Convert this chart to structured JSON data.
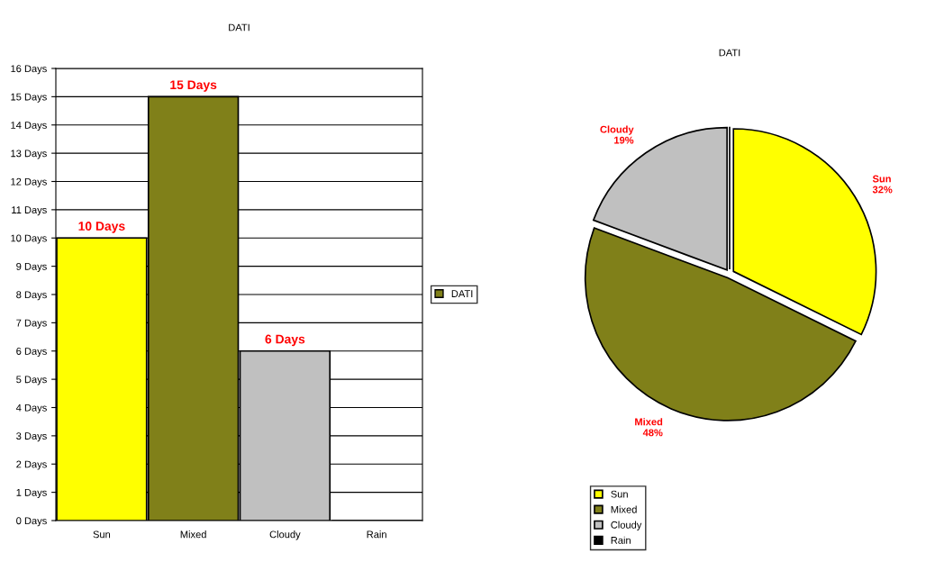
{
  "chart_data": [
    {
      "type": "bar",
      "title": "DATI",
      "categories": [
        "Sun",
        "Mixed",
        "Cloudy",
        "Rain"
      ],
      "series": [
        {
          "name": "DATI",
          "color": "#808019",
          "colors": [
            "#ffff00",
            "#808019",
            "#c0c0c0",
            "#000000"
          ],
          "values": [
            10,
            15,
            6,
            0
          ],
          "value_labels": [
            "10 Days",
            "15 Days",
            "6 Days",
            null
          ]
        }
      ],
      "ylim": [
        0,
        16
      ],
      "yticks": [
        {
          "value": 0,
          "label": "0 Days"
        },
        {
          "value": 1,
          "label": "1 Days"
        },
        {
          "value": 2,
          "label": "2 Days"
        },
        {
          "value": 3,
          "label": "3 Days"
        },
        {
          "value": 4,
          "label": "4 Days"
        },
        {
          "value": 5,
          "label": "5 Days"
        },
        {
          "value": 6,
          "label": "6 Days"
        },
        {
          "value": 7,
          "label": "7 Days"
        },
        {
          "value": 8,
          "label": "8 Days"
        },
        {
          "value": 9,
          "label": "9 Days"
        },
        {
          "value": 10,
          "label": "10 Days"
        },
        {
          "value": 11,
          "label": "11 Days"
        },
        {
          "value": 12,
          "label": "12 Days"
        },
        {
          "value": 13,
          "label": "13 Days"
        },
        {
          "value": 14,
          "label": "14 Days"
        },
        {
          "value": 15,
          "label": "15 Days"
        },
        {
          "value": 16,
          "label": "16 Days"
        }
      ],
      "grid": "y",
      "legend": "right"
    },
    {
      "type": "pie",
      "title": "DATI",
      "categories": [
        "Sun",
        "Mixed",
        "Cloudy",
        "Rain"
      ],
      "values": [
        32.3,
        48.4,
        19.3,
        0
      ],
      "colors": [
        "#ffff00",
        "#808019",
        "#c0c0c0",
        "#000000"
      ],
      "value_labels": [
        "32%",
        "48%",
        "19%",
        null
      ],
      "legend": "bottom left"
    }
  ]
}
